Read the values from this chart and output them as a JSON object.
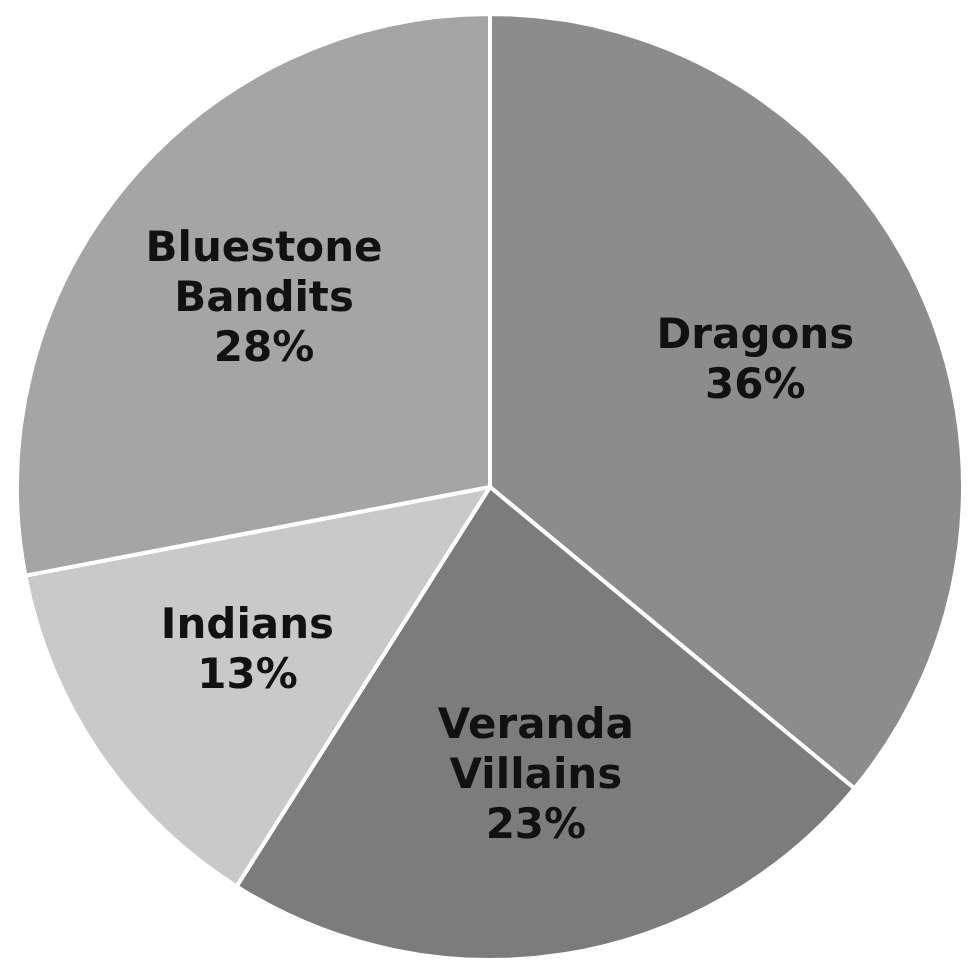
{
  "chart_data": {
    "type": "pie",
    "categories": [
      "Dragons",
      "Veranda Villains",
      "Indians",
      "Bluestone Bandits"
    ],
    "values": [
      36,
      23,
      13,
      28
    ],
    "value_labels": [
      "36%",
      "23%",
      "13%",
      "28%"
    ],
    "colors": [
      "#8c8c8c",
      "#7c7c7c",
      "#c9c9c9",
      "#a5a5a5"
    ],
    "legend": false
  }
}
